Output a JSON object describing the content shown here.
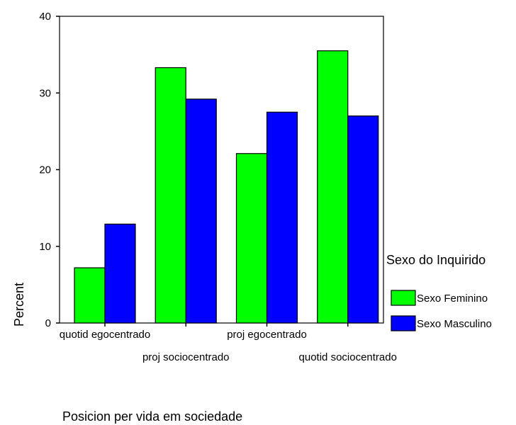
{
  "chart_data": {
    "type": "bar",
    "categories": [
      "quotid egocentrado",
      "proj sociocentrado",
      "proj egocentrado",
      "quotid sociocentrado"
    ],
    "series": [
      {
        "name": "Sexo Feminino",
        "values": [
          7.2,
          33.3,
          22.1,
          35.5
        ],
        "color": "#00ff00"
      },
      {
        "name": "Sexo Masculino",
        "values": [
          12.9,
          29.2,
          27.5,
          27.0
        ],
        "color": "#0000ff"
      }
    ],
    "xlabel": "Posicion per vida em sociedade",
    "ylabel": "Percent",
    "ylim": [
      0,
      40
    ],
    "yticks": [
      0,
      10,
      20,
      30,
      40
    ],
    "legend": {
      "title": "Sexo do Inquirido",
      "position": "right"
    },
    "grid": false
  }
}
